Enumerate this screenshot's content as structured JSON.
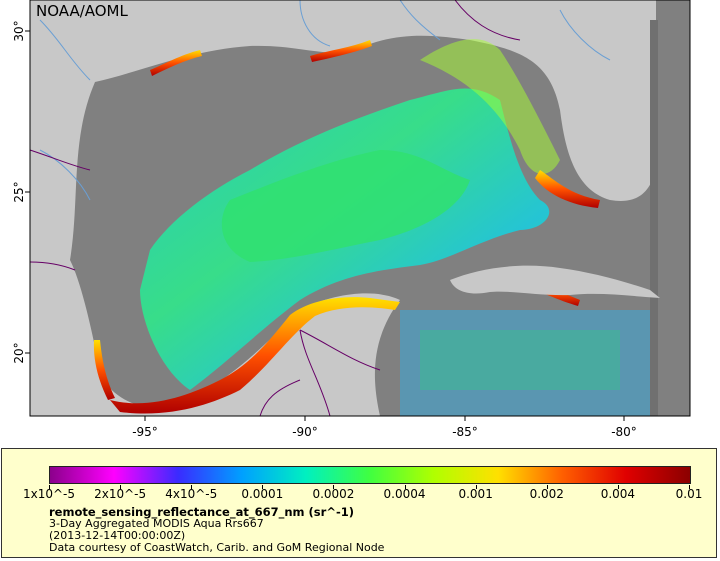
{
  "map": {
    "credit": "NOAA/AOML",
    "lat_labels": [
      "30°",
      "25°",
      "20°"
    ],
    "lon_labels": [
      "-95°",
      "-90°",
      "-85°",
      "-80°"
    ],
    "colors": {
      "land": "#c8c8c8",
      "no_data": "#808080",
      "border": "#660066",
      "river": "#6a9fd4"
    }
  },
  "legend": {
    "variable": "remote_sensing_reflectance_at_667_nm (sr^-1)",
    "description": "3-Day Aggregated MODIS Aqua Rrs667",
    "time": "(2013-12-14T00:00:00Z)",
    "credit": "Data courtesy of CoastWatch, Carib. and GoM Regional Node",
    "ticks": [
      "1x10^-5",
      "2x10^-5",
      "4x10^-5",
      "0.0001",
      "0.0002",
      "0.0004",
      "0.001",
      "0.002",
      "0.004",
      "0.01"
    ],
    "palette": [
      "#8b008b",
      "#ff00ff",
      "#3a2bff",
      "#00a0ff",
      "#00f0c0",
      "#40ff40",
      "#b0ff00",
      "#ffe000",
      "#ff6000",
      "#e00000",
      "#8b0000"
    ]
  }
}
